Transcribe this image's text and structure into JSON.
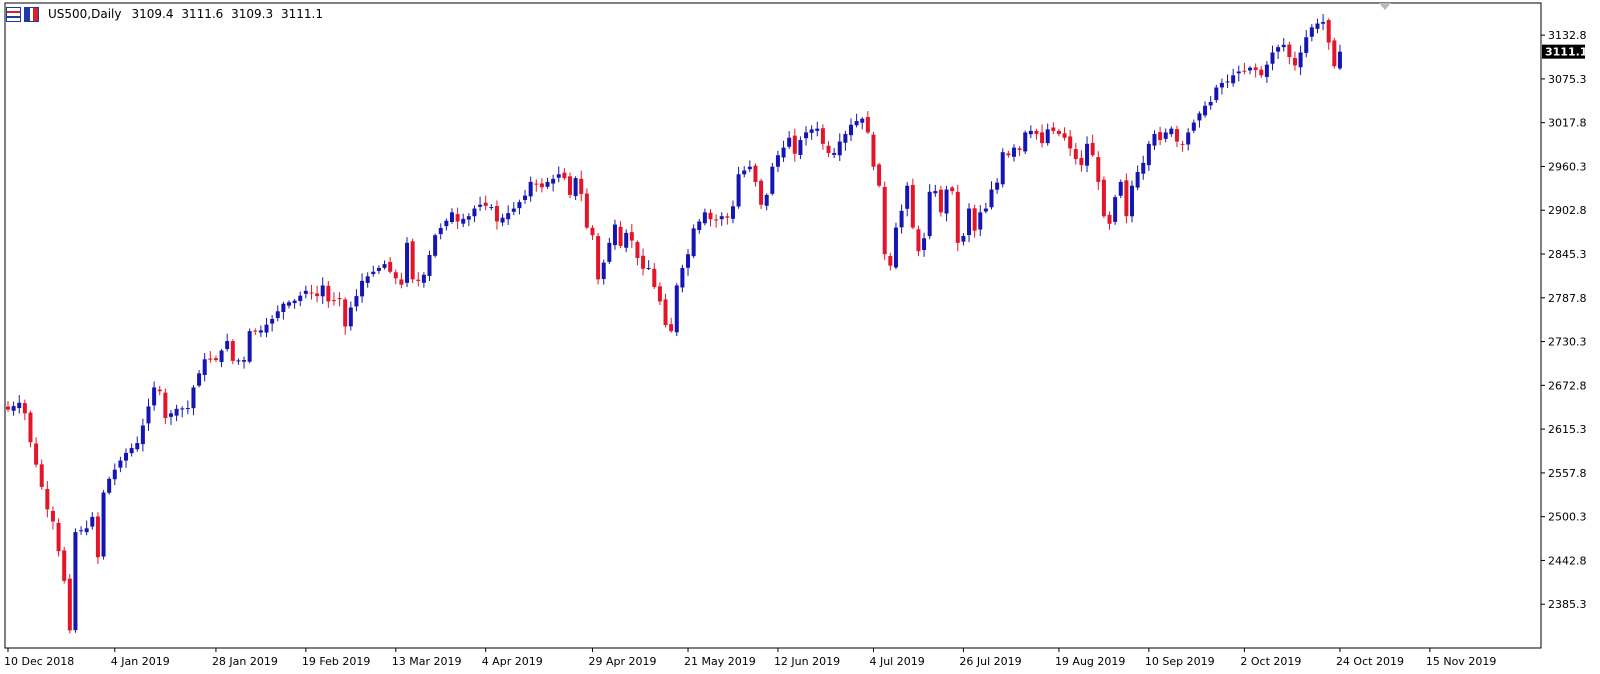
{
  "header": {
    "symbol_label": "US500,Daily",
    "open": "3109.4",
    "high": "3111.6",
    "low": "3109.3",
    "close": "3111.1",
    "icons": [
      "chart-properties-icon",
      "timeframe-icon"
    ]
  },
  "colors": {
    "bull": "#1515b3",
    "bear": "#e3152a",
    "axis": "#000000",
    "price_label_bg": "#000000",
    "price_label_text": "#ffffff",
    "shift_marker": "#b9b9b9"
  },
  "chart_data": {
    "type": "candlestick",
    "symbol": "US500",
    "timeframe": "Daily",
    "current_price": 3111.1,
    "current_price_label": "3111.1",
    "y_range": [
      2327.8,
      3175.0
    ],
    "y_tick_values": [
      3132.8,
      3075.3,
      3017.8,
      2960.3,
      2902.8,
      2845.3,
      2787.8,
      2730.3,
      2672.8,
      2615.3,
      2557.8,
      2500.3,
      2442.8,
      2385.3
    ],
    "y_tick_labels": [
      "3132.8",
      "3075.3",
      "3017.8",
      "2960.3",
      "2902.8",
      "2845.3",
      "2787.8",
      "2730.3",
      "2672.8",
      "2615.3",
      "2557.8",
      "2500.3",
      "2442.8",
      "2385.3"
    ],
    "x_tick_labels": [
      "10 Dec 2018",
      "4 Jan 2019",
      "28 Jan 2019",
      "19 Feb 2019",
      "13 Mar 2019",
      "4 Apr 2019",
      "29 Apr 2019",
      "21 May 2019",
      "12 Jun 2019",
      "4 Jul 2019",
      "26 Jul 2019",
      "19 Aug 2019",
      "10 Sep 2019",
      "2 Oct 2019",
      "24 Oct 2019",
      "15 Nov 2019"
    ],
    "x_tick_bar_index": [
      0,
      19,
      37,
      53,
      69,
      85,
      104,
      121,
      137,
      154,
      170,
      187,
      203,
      220,
      237,
      253
    ],
    "grid": false,
    "legend": "none",
    "close_path": [
      [
        0,
        2641
      ],
      [
        2,
        2650
      ],
      [
        3,
        2636
      ],
      [
        4,
        2598
      ],
      [
        7,
        2510
      ],
      [
        8,
        2494
      ],
      [
        10,
        2416
      ],
      [
        11,
        2351
      ],
      [
        12,
        2480
      ],
      [
        14,
        2485
      ],
      [
        15,
        2500
      ],
      [
        16,
        2447
      ],
      [
        17,
        2532
      ],
      [
        18,
        2550
      ],
      [
        20,
        2574
      ],
      [
        21,
        2584
      ],
      [
        23,
        2597
      ],
      [
        24,
        2620
      ],
      [
        26,
        2670
      ],
      [
        27,
        2665
      ],
      [
        28,
        2630
      ],
      [
        30,
        2642
      ],
      [
        32,
        2643
      ],
      [
        33,
        2670
      ],
      [
        35,
        2707
      ],
      [
        37,
        2706
      ],
      [
        39,
        2731
      ],
      [
        40,
        2705
      ],
      [
        42,
        2706
      ],
      [
        43,
        2744
      ],
      [
        45,
        2745
      ],
      [
        47,
        2760
      ],
      [
        49,
        2780
      ],
      [
        51,
        2784
      ],
      [
        53,
        2797
      ],
      [
        55,
        2790
      ],
      [
        56,
        2804
      ],
      [
        57,
        2783
      ],
      [
        59,
        2786
      ],
      [
        60,
        2750
      ],
      [
        61,
        2775
      ],
      [
        62,
        2790
      ],
      [
        63,
        2810
      ],
      [
        65,
        2822
      ],
      [
        67,
        2832
      ],
      [
        68,
        2822
      ],
      [
        70,
        2805
      ],
      [
        71,
        2860
      ],
      [
        72,
        2812
      ],
      [
        73,
        2810
      ],
      [
        74,
        2818
      ],
      [
        76,
        2870
      ],
      [
        78,
        2889
      ],
      [
        79,
        2900
      ],
      [
        80,
        2888
      ],
      [
        82,
        2895
      ],
      [
        83,
        2905
      ],
      [
        84,
        2910
      ],
      [
        86,
        2907
      ],
      [
        87,
        2888
      ],
      [
        88,
        2893
      ],
      [
        90,
        2905
      ],
      [
        92,
        2922
      ],
      [
        93,
        2940
      ],
      [
        95,
        2933
      ],
      [
        96,
        2940
      ],
      [
        97,
        2944
      ],
      [
        98,
        2950
      ],
      [
        99,
        2945
      ],
      [
        100,
        2923
      ],
      [
        101,
        2945
      ],
      [
        102,
        2924
      ],
      [
        103,
        2880
      ],
      [
        104,
        2870
      ],
      [
        105,
        2812
      ],
      [
        106,
        2834
      ],
      [
        107,
        2860
      ],
      [
        108,
        2884
      ],
      [
        109,
        2856
      ],
      [
        110,
        2873
      ],
      [
        111,
        2863
      ],
      [
        112,
        2840
      ],
      [
        113,
        2826
      ],
      [
        114,
        2827
      ],
      [
        115,
        2802
      ],
      [
        116,
        2783
      ],
      [
        117,
        2752
      ],
      [
        118,
        2744
      ],
      [
        119,
        2804
      ],
      [
        120,
        2827
      ],
      [
        121,
        2845
      ],
      [
        122,
        2879
      ],
      [
        123,
        2888
      ],
      [
        124,
        2900
      ],
      [
        125,
        2891
      ],
      [
        126,
        2890
      ],
      [
        127,
        2895
      ],
      [
        128,
        2893
      ],
      [
        129,
        2908
      ],
      [
        130,
        2950
      ],
      [
        131,
        2955
      ],
      [
        132,
        2960
      ],
      [
        133,
        2940
      ],
      [
        134,
        2910
      ],
      [
        135,
        2923
      ],
      [
        136,
        2960
      ],
      [
        137,
        2975
      ],
      [
        138,
        2985
      ],
      [
        139,
        2998
      ],
      [
        140,
        2977
      ],
      [
        141,
        2995
      ],
      [
        142,
        3005
      ],
      [
        143,
        3009
      ],
      [
        144,
        3010
      ],
      [
        145,
        2990
      ],
      [
        146,
        2978
      ],
      [
        147,
        2978
      ],
      [
        148,
        2993
      ],
      [
        149,
        3003
      ],
      [
        150,
        3015
      ],
      [
        151,
        3020
      ],
      [
        152,
        3023
      ],
      [
        153,
        3005
      ],
      [
        154,
        2960
      ],
      [
        155,
        2935
      ],
      [
        156,
        2845
      ],
      [
        157,
        2830
      ],
      [
        158,
        2880
      ],
      [
        159,
        2902
      ],
      [
        160,
        2935
      ],
      [
        161,
        2880
      ],
      [
        162,
        2849
      ],
      [
        163,
        2866
      ],
      [
        164,
        2927
      ],
      [
        165,
        2928
      ],
      [
        166,
        2900
      ],
      [
        167,
        2930
      ],
      [
        168,
        2928
      ],
      [
        169,
        2860
      ],
      [
        170,
        2869
      ],
      [
        171,
        2905
      ],
      [
        172,
        2876
      ],
      [
        173,
        2900
      ],
      [
        174,
        2905
      ],
      [
        175,
        2930
      ],
      [
        176,
        2939
      ],
      [
        177,
        2979
      ],
      [
        178,
        2975
      ],
      [
        179,
        2985
      ],
      [
        180,
        2982
      ],
      [
        181,
        3005
      ],
      [
        182,
        3007
      ],
      [
        183,
        3003
      ],
      [
        184,
        2991
      ],
      [
        185,
        3009
      ],
      [
        186,
        3007
      ],
      [
        187,
        3003
      ],
      [
        188,
        2998
      ],
      [
        189,
        2984
      ],
      [
        190,
        2970
      ],
      [
        191,
        2962
      ],
      [
        192,
        2990
      ],
      [
        193,
        2975
      ],
      [
        194,
        2940
      ],
      [
        195,
        2895
      ],
      [
        196,
        2885
      ],
      [
        197,
        2920
      ],
      [
        198,
        2940
      ],
      [
        199,
        2895
      ],
      [
        200,
        2935
      ],
      [
        201,
        2953
      ],
      [
        202,
        2965
      ],
      [
        203,
        2990
      ],
      [
        204,
        3003
      ],
      [
        205,
        2995
      ],
      [
        206,
        3005
      ],
      [
        207,
        3010
      ],
      [
        208,
        2993
      ],
      [
        209,
        2990
      ],
      [
        210,
        3005
      ],
      [
        211,
        3018
      ],
      [
        212,
        3030
      ],
      [
        213,
        3040
      ],
      [
        214,
        3045
      ],
      [
        215,
        3064
      ],
      [
        216,
        3070
      ],
      [
        217,
        3072
      ],
      [
        218,
        3080
      ],
      [
        219,
        3085
      ],
      [
        220,
        3085
      ],
      [
        221,
        3090
      ],
      [
        222,
        3087
      ],
      [
        223,
        3080
      ],
      [
        224,
        3094
      ],
      [
        225,
        3110
      ],
      [
        226,
        3117
      ],
      [
        227,
        3120
      ],
      [
        228,
        3104
      ],
      [
        229,
        3093
      ],
      [
        230,
        3110
      ],
      [
        231,
        3130
      ],
      [
        232,
        3143
      ],
      [
        233,
        3148
      ],
      [
        234,
        3150
      ],
      [
        235,
        3123
      ],
      [
        236,
        3092
      ],
      [
        237,
        3111
      ]
    ]
  }
}
